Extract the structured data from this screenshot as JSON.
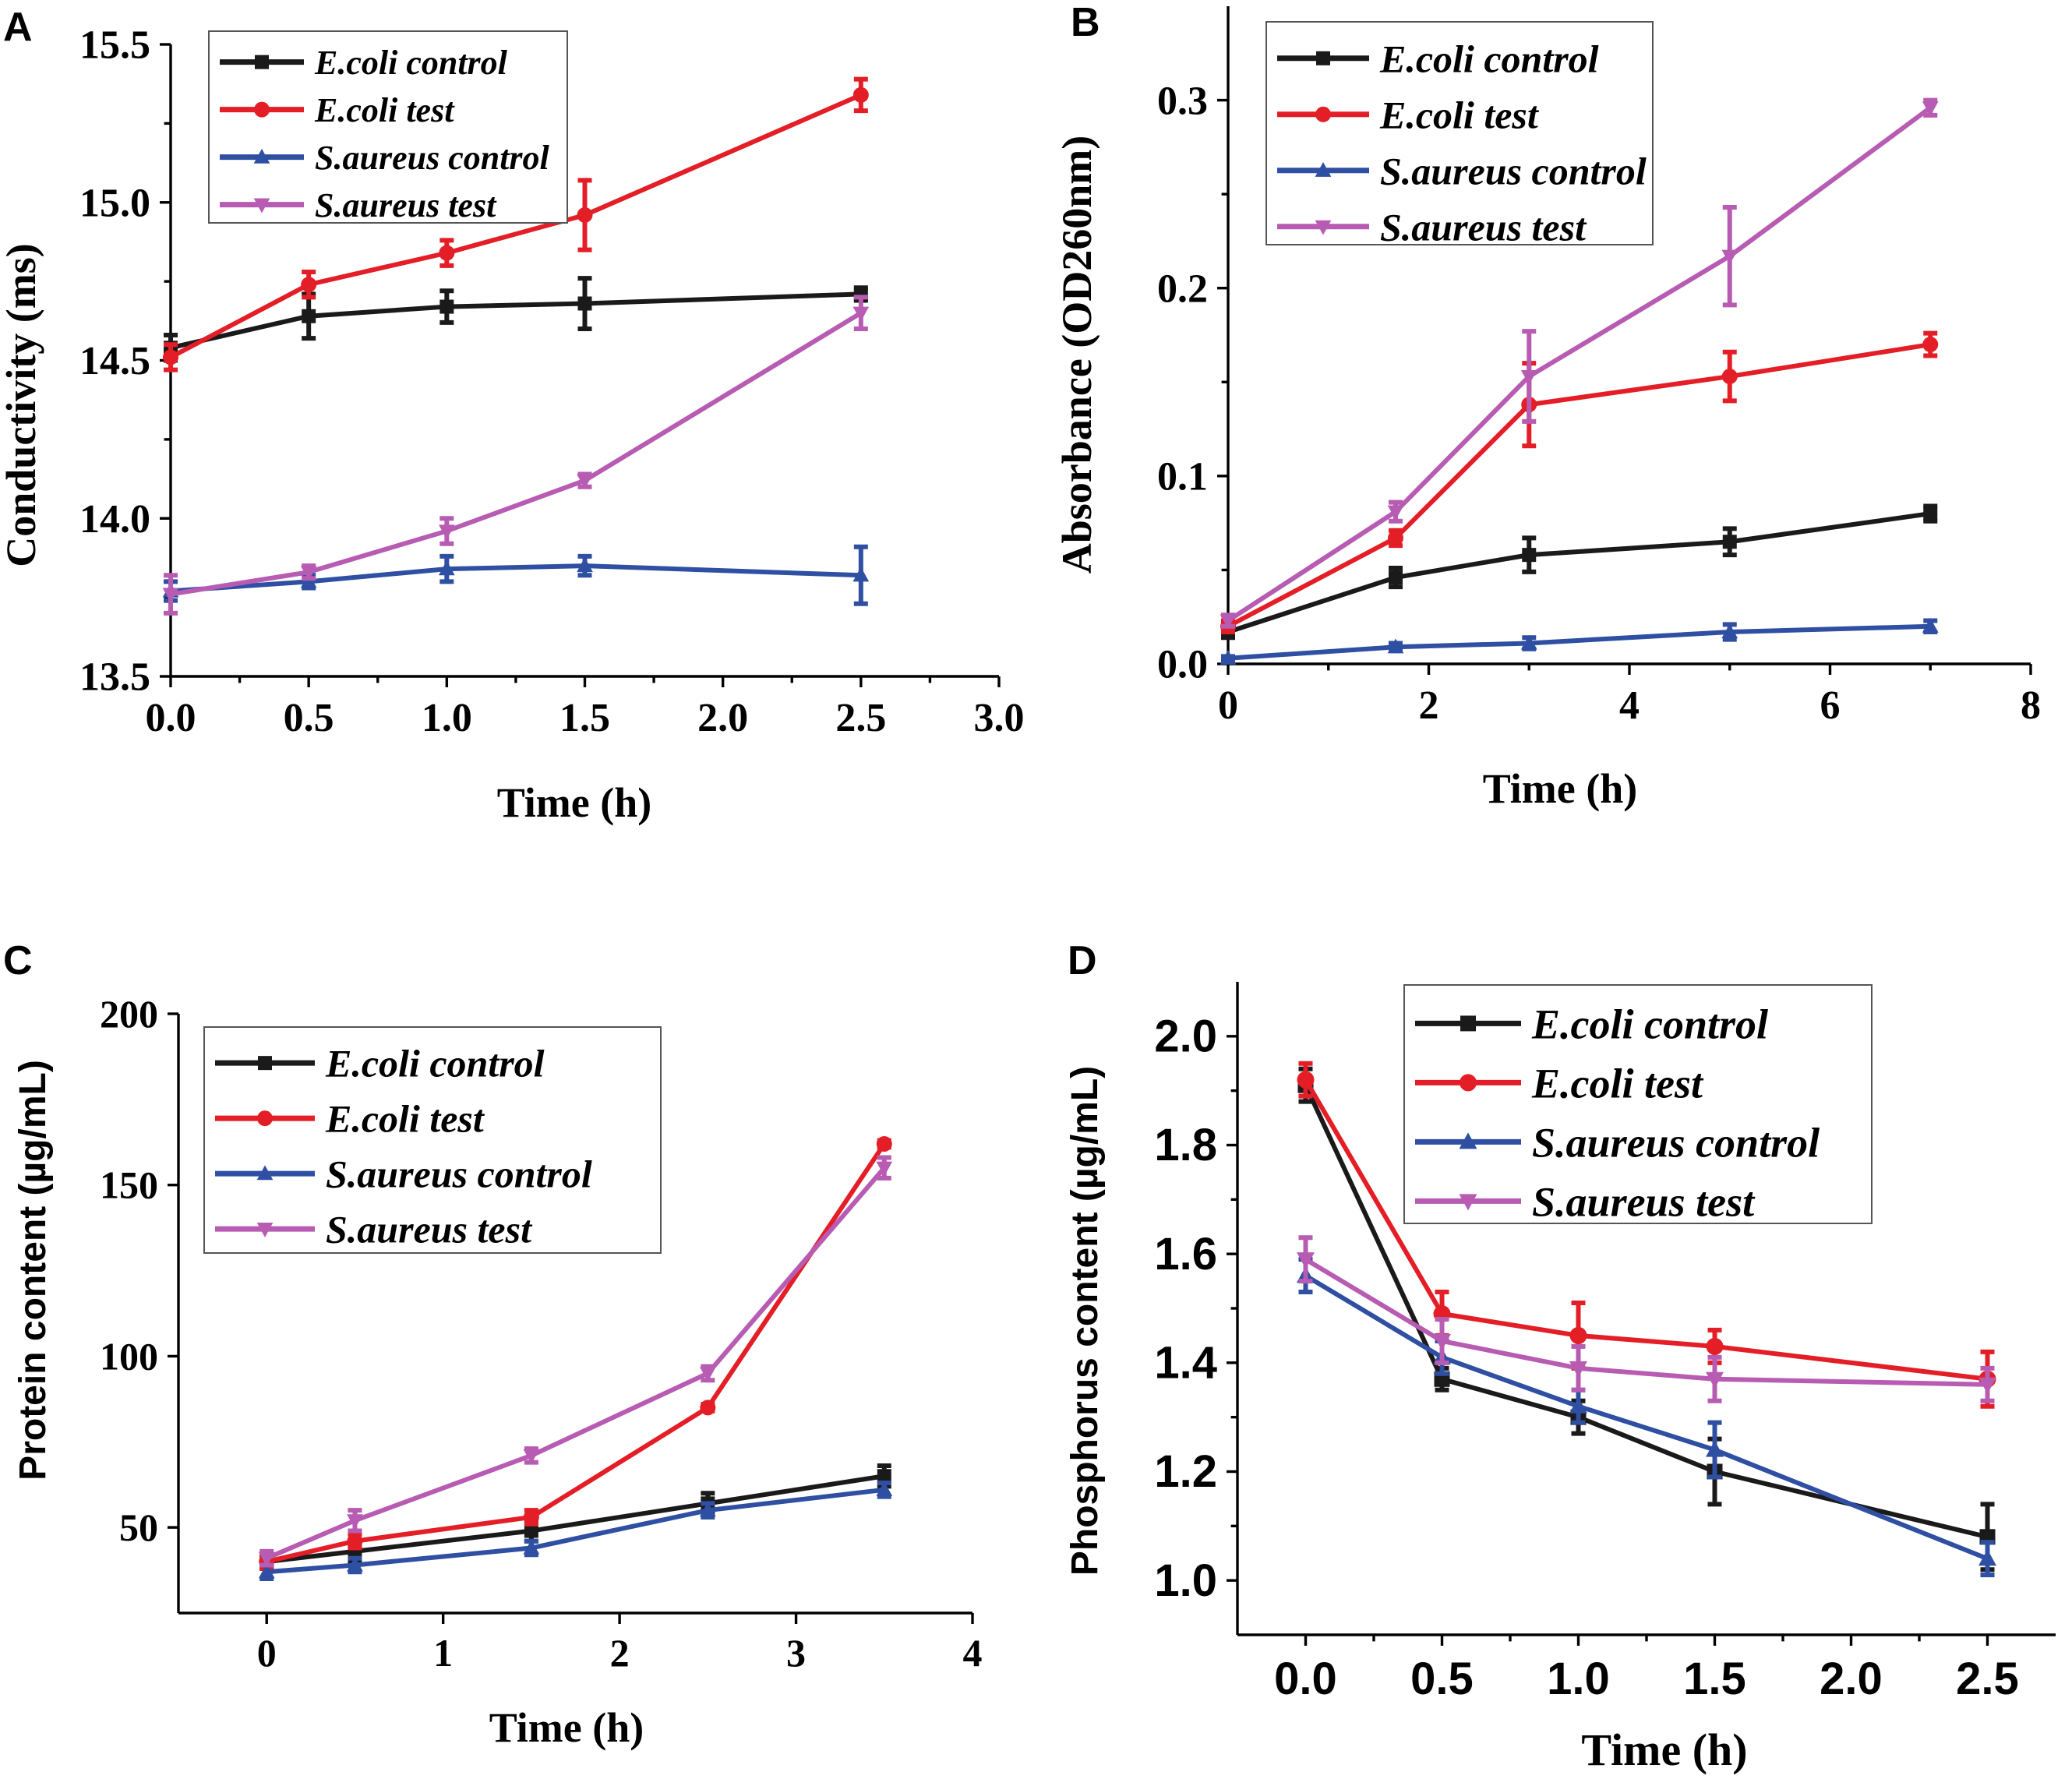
{
  "chart_data": [
    {
      "panel": "A",
      "type": "line",
      "xlabel": "Time (h)",
      "ylabel": "Conductivity (ms)",
      "xlim": [
        0,
        3.0
      ],
      "ylim": [
        13.5,
        15.5
      ],
      "xticks": [
        "0.0",
        "0.5",
        "1.0",
        "1.5",
        "2.0",
        "2.5",
        "3.0"
      ],
      "yticks": [
        "13.5",
        "14.0",
        "14.5",
        "15.0",
        "15.5"
      ],
      "x": [
        0,
        0.5,
        1.0,
        1.5,
        2.5
      ],
      "series": [
        {
          "name": "E.coli control",
          "color": "#1a1a1a",
          "marker": "square",
          "values": [
            14.54,
            14.64,
            14.67,
            14.68,
            14.71
          ],
          "err": [
            0.04,
            0.07,
            0.05,
            0.08,
            0.02
          ]
        },
        {
          "name": "E.coli test",
          "color": "#e41e26",
          "marker": "circle",
          "values": [
            14.51,
            14.74,
            14.84,
            14.96,
            15.34
          ],
          "err": [
            0.04,
            0.04,
            0.04,
            0.11,
            0.05
          ]
        },
        {
          "name": "S.aureus control",
          "color": "#2f4fa3",
          "marker": "triangle-up",
          "values": [
            13.77,
            13.8,
            13.84,
            13.85,
            13.82
          ],
          "err": [
            0.03,
            0.02,
            0.04,
            0.03,
            0.09
          ]
        },
        {
          "name": "S.aureus test",
          "color": "#b75cb2",
          "marker": "triangle-down",
          "values": [
            13.76,
            13.83,
            13.96,
            14.12,
            14.65
          ],
          "err": [
            0.06,
            0.02,
            0.04,
            0.02,
            0.05
          ]
        }
      ]
    },
    {
      "panel": "B",
      "type": "line",
      "xlabel": "Time (h)",
      "ylabel": "Absorbance (OD260nm)",
      "xlim": [
        0,
        8
      ],
      "ylim": [
        0,
        0.35
      ],
      "xticks": [
        "0",
        "2",
        "4",
        "6",
        "8"
      ],
      "yticks": [
        "0.0",
        "0.1",
        "0.2",
        "0.3"
      ],
      "x": [
        0,
        1.67,
        3.0,
        5.0,
        7.0
      ],
      "series": [
        {
          "name": "E.coli control",
          "color": "#1a1a1a",
          "marker": "square",
          "values": [
            0.017,
            0.046,
            0.058,
            0.065,
            0.08
          ],
          "err": [
            0.003,
            0.005,
            0.009,
            0.007,
            0.004
          ]
        },
        {
          "name": "E.coli test",
          "color": "#e41e26",
          "marker": "circle",
          "values": [
            0.02,
            0.067,
            0.138,
            0.153,
            0.17
          ],
          "err": [
            0.003,
            0.004,
            0.022,
            0.013,
            0.006
          ]
        },
        {
          "name": "S.aureus control",
          "color": "#2f4fa3",
          "marker": "triangle-up",
          "values": [
            0.003,
            0.009,
            0.011,
            0.017,
            0.02
          ],
          "err": [
            0.001,
            0.002,
            0.003,
            0.004,
            0.003
          ]
        },
        {
          "name": "S.aureus test",
          "color": "#b75cb2",
          "marker": "triangle-down",
          "values": [
            0.023,
            0.081,
            0.153,
            0.217,
            0.296
          ],
          "err": [
            0.003,
            0.005,
            0.024,
            0.026,
            0.004
          ]
        }
      ]
    },
    {
      "panel": "C",
      "type": "line",
      "xlabel": "Time (h)",
      "ylabel": "Protein content (µg/mL)",
      "xlim": [
        -0.5,
        4
      ],
      "ylim": [
        25,
        200
      ],
      "xticks": [
        "0",
        "1",
        "2",
        "3",
        "4"
      ],
      "yticks": [
        "50",
        "100",
        "150",
        "200"
      ],
      "x": [
        0,
        0.5,
        1.5,
        2.5,
        3.5
      ],
      "series": [
        {
          "name": "E.coli control",
          "color": "#1a1a1a",
          "marker": "square",
          "values": [
            40,
            43,
            49,
            57,
            65
          ],
          "err": [
            2,
            3,
            3,
            3,
            3
          ]
        },
        {
          "name": "E.coli test",
          "color": "#e41e26",
          "marker": "circle",
          "values": [
            40,
            46,
            53,
            85,
            162
          ],
          "err": [
            2,
            2,
            2,
            1,
            1
          ]
        },
        {
          "name": "S.aureus control",
          "color": "#2f4fa3",
          "marker": "triangle-up",
          "values": [
            37,
            39,
            44,
            55,
            61
          ],
          "err": [
            2,
            2,
            2,
            2,
            2
          ]
        },
        {
          "name": "S.aureus test",
          "color": "#b75cb2",
          "marker": "triangle-down",
          "values": [
            41,
            52,
            71,
            95,
            155
          ],
          "err": [
            2,
            3,
            2,
            2,
            3
          ]
        }
      ]
    },
    {
      "panel": "D",
      "type": "line",
      "xlabel": "Time (h)",
      "ylabel": "Phosphorus content (µg/mL)",
      "xlim": [
        -0.25,
        2.75
      ],
      "ylim": [
        0.9,
        2.1
      ],
      "xticks": [
        "0.0",
        "0.5",
        "1.0",
        "1.5",
        "2.0",
        "2.5"
      ],
      "yticks": [
        "1.0",
        "1.2",
        "1.4",
        "1.6",
        "1.8",
        "2.0"
      ],
      "x": [
        0,
        0.5,
        1.0,
        1.5,
        2.5
      ],
      "series": [
        {
          "name": "E.coli control",
          "color": "#1a1a1a",
          "marker": "square",
          "values": [
            1.91,
            1.37,
            1.3,
            1.2,
            1.08
          ],
          "err": [
            0.03,
            0.02,
            0.03,
            0.06,
            0.06
          ]
        },
        {
          "name": "E.coli test",
          "color": "#e41e26",
          "marker": "circle",
          "values": [
            1.92,
            1.49,
            1.45,
            1.43,
            1.37
          ],
          "err": [
            0.03,
            0.04,
            0.06,
            0.03,
            0.05
          ]
        },
        {
          "name": "S.aureus control",
          "color": "#2f4fa3",
          "marker": "triangle-up",
          "values": [
            1.56,
            1.41,
            1.32,
            1.24,
            1.04
          ],
          "err": [
            0.03,
            0.03,
            0.03,
            0.05,
            0.03
          ]
        },
        {
          "name": "S.aureus test",
          "color": "#b75cb2",
          "marker": "triangle-down",
          "values": [
            1.59,
            1.44,
            1.39,
            1.37,
            1.36
          ],
          "err": [
            0.04,
            0.04,
            0.04,
            0.04,
            0.03
          ]
        }
      ]
    }
  ]
}
